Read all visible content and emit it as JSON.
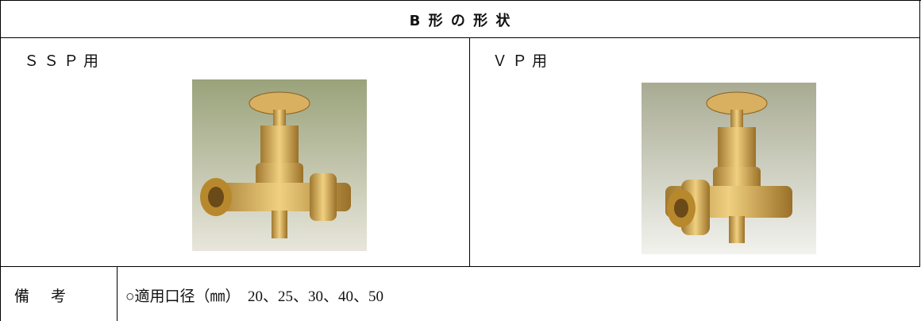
{
  "header": {
    "title": "B 形 の 形 状"
  },
  "table": {
    "rows": [
      [
        "ＳＳＰ用",
        "ＶＰ用"
      ],
      [
        "備　考",
        "○適用口径（㎜）　20、25、30、40、50"
      ]
    ]
  }
}
